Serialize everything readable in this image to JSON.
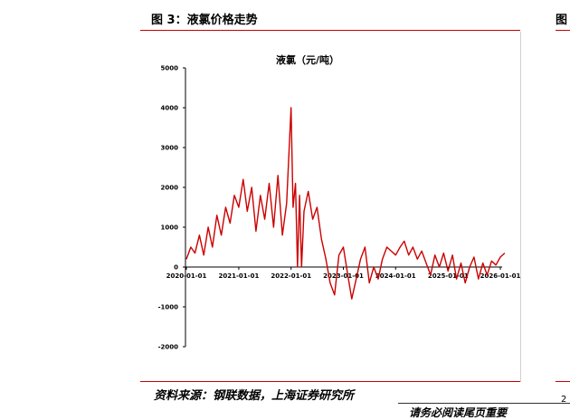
{
  "header": {
    "figure_title": "图 3：液氯价格走势",
    "right_fragment": "图"
  },
  "source_note": "资料来源：钢联数据，上海证券研究所",
  "footer": {
    "text": "请务必阅读尾页重要",
    "corner": "2"
  },
  "chart_data": {
    "type": "line",
    "title": "液氯（元/吨）",
    "xlabel": "",
    "ylabel": "",
    "ylim": [
      -2000,
      5000
    ],
    "y_ticks": [
      5000,
      4000,
      3000,
      2000,
      1000,
      0,
      -1000,
      -2000
    ],
    "x_ticks": [
      "2020-01-01",
      "2021-01-01",
      "2022-01-01",
      "2023-01-01",
      "2024-01-01",
      "2025-01-01",
      "2026-01-01"
    ],
    "x_range": [
      "2020-01-01",
      "2026-01-01"
    ],
    "line_color": "#cc0000",
    "series": [
      {
        "points": [
          [
            "2020-01-01",
            200
          ],
          [
            "2020-02-01",
            500
          ],
          [
            "2020-03-01",
            350
          ],
          [
            "2020-04-01",
            800
          ],
          [
            "2020-05-01",
            300
          ],
          [
            "2020-06-01",
            1000
          ],
          [
            "2020-07-01",
            500
          ],
          [
            "2020-08-01",
            1300
          ],
          [
            "2020-09-01",
            800
          ],
          [
            "2020-10-01",
            1500
          ],
          [
            "2020-11-01",
            1100
          ],
          [
            "2020-12-01",
            1800
          ],
          [
            "2021-01-01",
            1500
          ],
          [
            "2021-02-01",
            2200
          ],
          [
            "2021-03-01",
            1400
          ],
          [
            "2021-04-01",
            2000
          ],
          [
            "2021-05-01",
            900
          ],
          [
            "2021-06-01",
            1800
          ],
          [
            "2021-07-01",
            1200
          ],
          [
            "2021-08-01",
            2100
          ],
          [
            "2021-09-01",
            1000
          ],
          [
            "2021-10-01",
            2300
          ],
          [
            "2021-11-01",
            800
          ],
          [
            "2021-12-01",
            1600
          ],
          [
            "2022-01-01",
            4000
          ],
          [
            "2022-01-15",
            1500
          ],
          [
            "2022-02-01",
            2100
          ],
          [
            "2022-02-15",
            0
          ],
          [
            "2022-03-01",
            1800
          ],
          [
            "2022-03-15",
            0
          ],
          [
            "2022-04-01",
            1400
          ],
          [
            "2022-05-01",
            1900
          ],
          [
            "2022-06-01",
            1200
          ],
          [
            "2022-07-01",
            1500
          ],
          [
            "2022-08-01",
            700
          ],
          [
            "2022-09-01",
            200
          ],
          [
            "2022-10-01",
            -400
          ],
          [
            "2022-11-01",
            -700
          ],
          [
            "2022-12-01",
            300
          ],
          [
            "2023-01-01",
            500
          ],
          [
            "2023-02-01",
            -200
          ],
          [
            "2023-03-01",
            -800
          ],
          [
            "2023-04-01",
            -300
          ],
          [
            "2023-05-01",
            200
          ],
          [
            "2023-06-01",
            500
          ],
          [
            "2023-07-01",
            -400
          ],
          [
            "2023-08-01",
            0
          ],
          [
            "2023-09-01",
            -300
          ],
          [
            "2023-10-01",
            200
          ],
          [
            "2023-11-01",
            500
          ],
          [
            "2023-12-01",
            400
          ],
          [
            "2024-01-01",
            300
          ],
          [
            "2024-02-01",
            500
          ],
          [
            "2024-03-01",
            650
          ],
          [
            "2024-04-01",
            300
          ],
          [
            "2024-05-01",
            500
          ],
          [
            "2024-06-01",
            200
          ],
          [
            "2024-07-01",
            400
          ],
          [
            "2024-08-01",
            100
          ],
          [
            "2024-09-01",
            -200
          ],
          [
            "2024-10-01",
            300
          ],
          [
            "2024-11-01",
            0
          ],
          [
            "2024-12-01",
            350
          ],
          [
            "2025-01-01",
            -100
          ],
          [
            "2025-02-01",
            300
          ],
          [
            "2025-03-01",
            -300
          ],
          [
            "2025-04-01",
            100
          ],
          [
            "2025-05-01",
            -400
          ],
          [
            "2025-06-01",
            0
          ],
          [
            "2025-07-01",
            250
          ],
          [
            "2025-08-01",
            -300
          ],
          [
            "2025-09-01",
            100
          ],
          [
            "2025-10-01",
            -200
          ],
          [
            "2025-11-01",
            150
          ],
          [
            "2025-12-01",
            50
          ],
          [
            "2026-01-01",
            250
          ],
          [
            "2026-02-01",
            350
          ]
        ]
      }
    ]
  }
}
